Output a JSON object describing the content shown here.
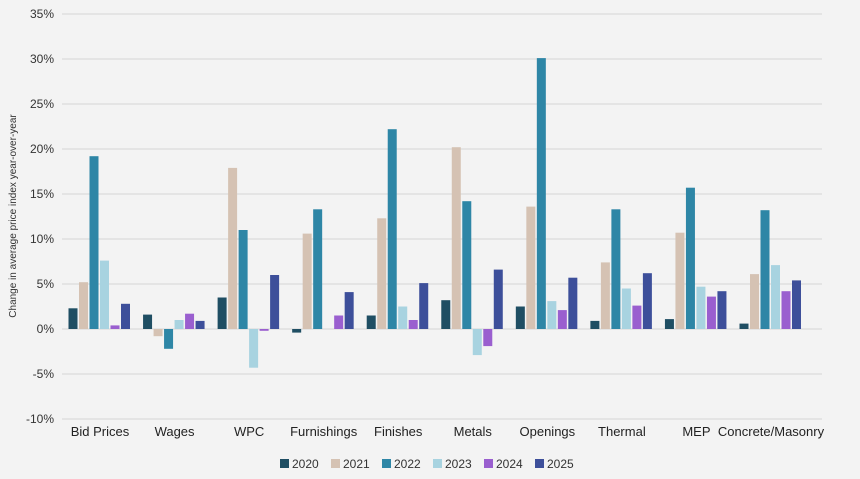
{
  "chart_data": {
    "type": "bar",
    "title": "",
    "xlabel": "",
    "ylabel": "Change in average price index year-over-year",
    "ylim": [
      -10,
      35
    ],
    "yticks": [
      -10,
      -5,
      0,
      5,
      10,
      15,
      20,
      25,
      30,
      35
    ],
    "ytick_labels": [
      "-10%",
      "-5%",
      "0%",
      "5%",
      "10%",
      "15%",
      "20%",
      "25%",
      "30%",
      "35%"
    ],
    "grid": true,
    "legend_position": "bottom",
    "categories": [
      "Bid Prices",
      "Wages",
      "WPC",
      "Furnishings",
      "Finishes",
      "Metals",
      "Openings",
      "Thermal",
      "MEP",
      "Concrete/Masonry"
    ],
    "series": [
      {
        "name": "2020",
        "color": "#1f4e63",
        "values": [
          2.3,
          1.6,
          3.5,
          -0.4,
          1.5,
          3.2,
          2.5,
          0.9,
          1.1,
          0.6
        ]
      },
      {
        "name": "2021",
        "color": "#d5c2b3",
        "values": [
          5.2,
          -0.8,
          17.9,
          10.6,
          12.3,
          20.2,
          13.6,
          7.4,
          10.7,
          6.1
        ]
      },
      {
        "name": "2022",
        "color": "#2e86a6",
        "values": [
          19.2,
          -2.2,
          11.0,
          13.3,
          22.2,
          14.2,
          30.1,
          13.3,
          15.7,
          13.2
        ]
      },
      {
        "name": "2023",
        "color": "#a8d3e0",
        "values": [
          7.6,
          1.0,
          -4.3,
          0.0,
          2.5,
          -2.9,
          3.1,
          4.5,
          4.7,
          7.1
        ]
      },
      {
        "name": "2024",
        "color": "#9a5fcf",
        "values": [
          0.4,
          1.7,
          -0.2,
          1.5,
          1.0,
          -1.9,
          2.1,
          2.6,
          3.6,
          4.2
        ]
      },
      {
        "name": "2025",
        "color": "#3d4f9a",
        "values": [
          2.8,
          0.9,
          6.0,
          4.1,
          5.1,
          6.6,
          5.7,
          6.2,
          4.2,
          5.4
        ]
      }
    ]
  }
}
